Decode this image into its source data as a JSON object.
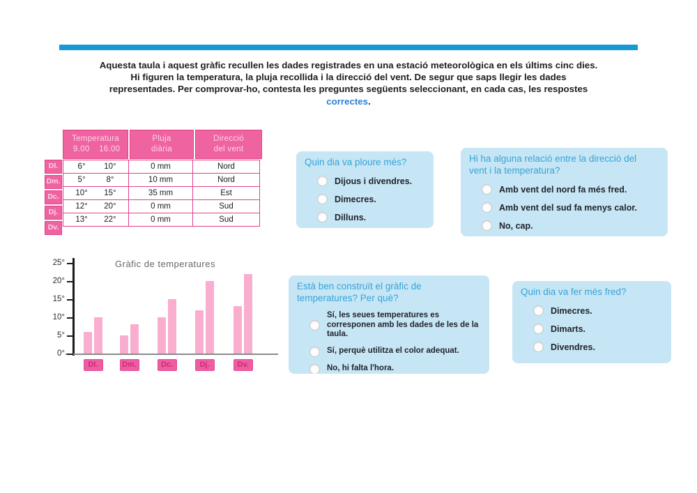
{
  "intro": {
    "lines": [
      "Aquesta taula i aquest gràfic recullen les dades registrades en una estació meteorològica en els últims cinc dies.",
      "Hi figuren la temperatura, la pluja recollida i la direcció del vent. De segur que saps llegir les dades",
      "representades. Per comprovar-ho, contesta les preguntes següents seleccionant, en cada cas, les respostes"
    ],
    "highlight": "correctes",
    "suffix": "."
  },
  "table": {
    "headers": [
      {
        "line1": "Temperatura",
        "sub": [
          "9.00",
          "16.00"
        ]
      },
      {
        "line1": "Pluja",
        "line2": "diària"
      },
      {
        "line1": "Direcció",
        "line2": "del vent"
      }
    ],
    "rows": [
      {
        "label": "Dl.",
        "temp9": "6°",
        "temp16": "10°",
        "rain": "0 mm",
        "wind": "Nord"
      },
      {
        "label": "Dm.",
        "temp9": "5°",
        "temp16": "8°",
        "rain": "10 mm",
        "wind": "Nord"
      },
      {
        "label": "Dc.",
        "temp9": "10°",
        "temp16": "15°",
        "rain": "35 mm",
        "wind": "Est"
      },
      {
        "label": "Dj.",
        "temp9": "12°",
        "temp16": "20°",
        "rain": "0 mm",
        "wind": "Sud"
      },
      {
        "label": "Dv.",
        "temp9": "13°",
        "temp16": "22°",
        "rain": "0 mm",
        "wind": "Sud"
      }
    ]
  },
  "chart_data": {
    "type": "bar",
    "title": "Gràfic de temperatures",
    "categories": [
      "Dl.",
      "Dm.",
      "Dc.",
      "Dj.",
      "Dv."
    ],
    "series": [
      {
        "name": "9.00",
        "values": [
          6,
          5,
          10,
          12,
          13
        ]
      },
      {
        "name": "16.00",
        "values": [
          10,
          8,
          15,
          20,
          22
        ]
      }
    ],
    "ylim": [
      0,
      25
    ],
    "ytick_labels": [
      "0°",
      "5°",
      "10°",
      "15°",
      "20°",
      "25°"
    ],
    "grid": false,
    "legend": "none"
  },
  "questions": [
    {
      "title_lines": [
        "Quin dia va ploure més?"
      ],
      "options": [
        "Dijous i divendres.",
        "Dimecres.",
        "Dilluns."
      ]
    },
    {
      "title_lines": [
        "Hi ha alguna relació entre la direcció del",
        "vent i la temperatura?"
      ],
      "options": [
        "Amb vent del nord fa més fred.",
        "Amb vent del sud fa menys calor.",
        "No, cap."
      ]
    },
    {
      "title_lines": [
        "Està ben construït el gràfic de",
        "temperatures? Per què?"
      ],
      "options": [
        "Sí, les seues temperatures es corresponen amb les dades de les de la taula.",
        "Sí, perquè utilitza el color adequat.",
        "No, hi falta l'hora."
      ]
    },
    {
      "title_lines": [
        "Quin dia va fer més fred?"
      ],
      "options": [
        "Dimecres.",
        "Dimarts.",
        "Divendres."
      ]
    }
  ],
  "colors": {
    "accent_blue": "#1898d4",
    "link_blue": "#2e7fd1",
    "question_box_bg": "#c7e6f5",
    "question_title_blue": "#35a3d8",
    "table_pink": "#ef63a0",
    "table_border_pink": "#e23f88",
    "bar_pink": "#f9aed0",
    "day_label_pink": "#ee5da2",
    "day_label_text": "#c92d74"
  }
}
